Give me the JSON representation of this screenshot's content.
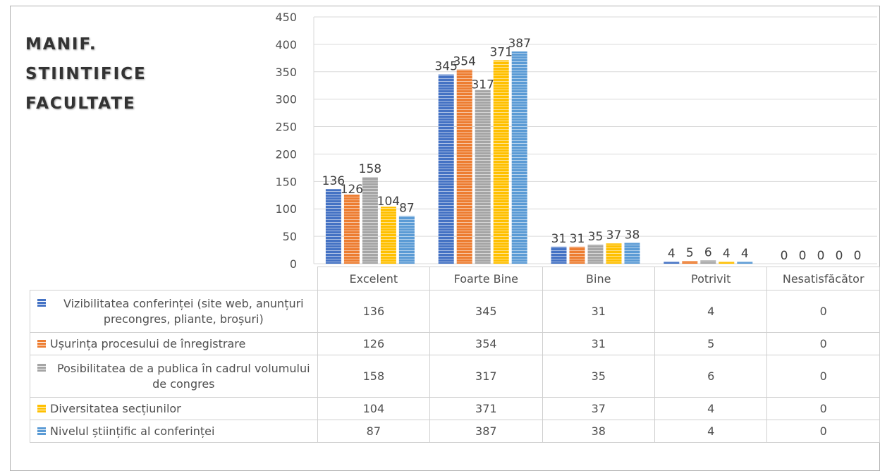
{
  "chart_data": {
    "type": "bar",
    "title": [
      "MANIF.",
      "STIINTIFICE",
      "FACULTATE"
    ],
    "categories": [
      "Excelent",
      "Foarte Bine",
      "Bine",
      "Potrivit",
      "Nesatisfăcător"
    ],
    "ylim": [
      0,
      450
    ],
    "yticks": [
      0,
      50,
      100,
      150,
      200,
      250,
      300,
      350,
      400,
      450
    ],
    "grid": true,
    "legend": "data-table",
    "series": [
      {
        "name": "Vizibilitatea conferinței (site web, anunțuri precongres, pliante, broșuri)",
        "color": "#4472c4",
        "values": [
          136,
          345,
          31,
          4,
          0
        ]
      },
      {
        "name": "Ușurința procesului de înregistrare",
        "color": "#ed7d31",
        "values": [
          126,
          354,
          31,
          5,
          0
        ]
      },
      {
        "name": "Posibilitatea de a publica în cadrul volumului de congres",
        "color": "#a5a5a5",
        "values": [
          158,
          317,
          35,
          6,
          0
        ]
      },
      {
        "name": "Diversitatea secțiunilor",
        "color": "#ffc000",
        "values": [
          104,
          371,
          37,
          4,
          0
        ]
      },
      {
        "name": "Nivelul științific al conferinței",
        "color": "#5b9bd5",
        "values": [
          87,
          387,
          38,
          4,
          0
        ]
      }
    ]
  }
}
